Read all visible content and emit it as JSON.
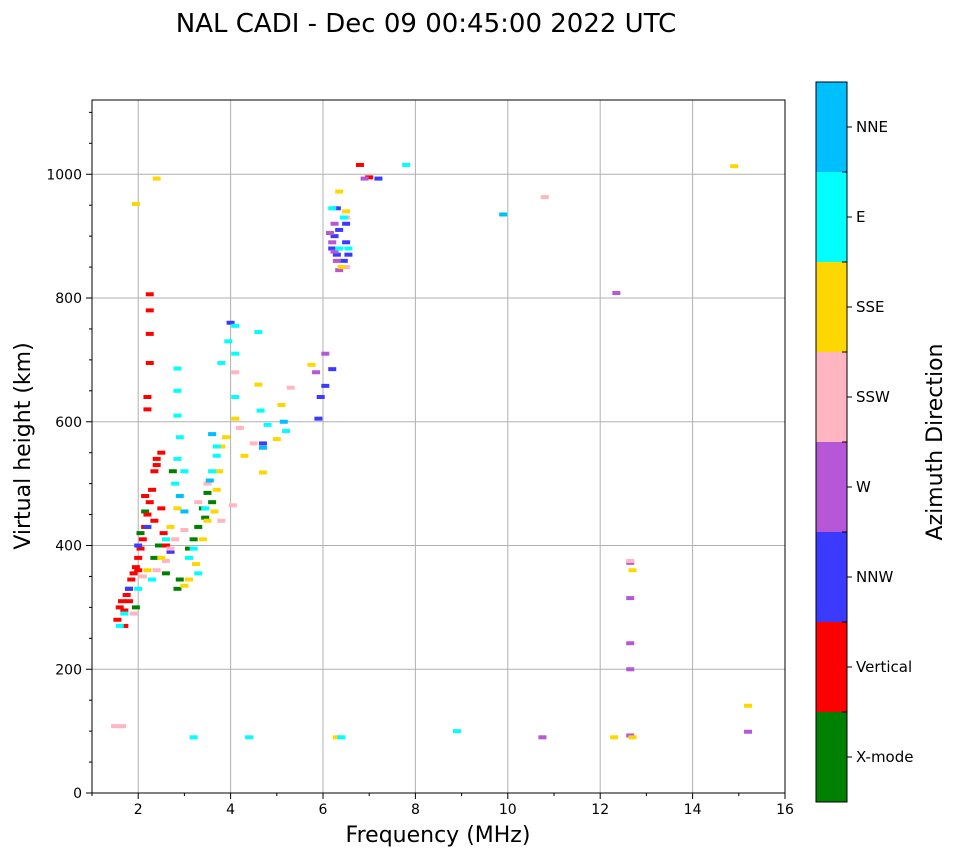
{
  "chart_data": {
    "type": "scatter",
    "title": "NAL CADI - Dec 09 00:45:00 2022 UTC",
    "xlabel": "Frequency (MHz)",
    "ylabel": "Virtual height (km)",
    "xlim": [
      1,
      16
    ],
    "ylim": [
      0,
      1120
    ],
    "xticks": [
      2,
      4,
      6,
      8,
      10,
      12,
      14,
      16
    ],
    "yticks": [
      0,
      200,
      400,
      600,
      800,
      1000
    ],
    "grid": true,
    "colorbar": {
      "label": "Azimuth Direction",
      "categories": [
        "X-mode",
        "Vertical",
        "NNW",
        "W",
        "SSW",
        "SSE",
        "E",
        "NNE"
      ],
      "colors": [
        "#008000",
        "#ff0000",
        "#3b3bff",
        "#b557d6",
        "#ffb6c1",
        "#ffd700",
        "#00ffff",
        "#00bfff"
      ]
    },
    "series": [
      {
        "name": "X-mode",
        "points": [
          [
            2.05,
            420
          ],
          [
            2.15,
            455
          ],
          [
            2.35,
            380
          ],
          [
            2.6,
            355
          ],
          [
            2.85,
            330
          ],
          [
            2.9,
            345
          ],
          [
            3.1,
            395
          ],
          [
            3.2,
            410
          ],
          [
            3.45,
            445
          ],
          [
            3.5,
            485
          ],
          [
            3.4,
            460
          ],
          [
            2.75,
            520
          ],
          [
            1.95,
            300
          ],
          [
            2.45,
            400
          ],
          [
            3.3,
            430
          ],
          [
            3.6,
            470
          ]
        ]
      },
      {
        "name": "Vertical",
        "points": [
          [
            1.55,
            280
          ],
          [
            1.6,
            300
          ],
          [
            1.65,
            310
          ],
          [
            1.7,
            295
          ],
          [
            1.75,
            320
          ],
          [
            1.8,
            330
          ],
          [
            1.85,
            345
          ],
          [
            1.9,
            355
          ],
          [
            1.95,
            365
          ],
          [
            2.0,
            380
          ],
          [
            2.05,
            395
          ],
          [
            2.1,
            410
          ],
          [
            2.15,
            430
          ],
          [
            2.2,
            450
          ],
          [
            2.25,
            470
          ],
          [
            2.3,
            490
          ],
          [
            2.35,
            520
          ],
          [
            2.4,
            540
          ],
          [
            2.5,
            460
          ],
          [
            2.55,
            420
          ],
          [
            2.6,
            400
          ],
          [
            2.7,
            390
          ],
          [
            2.2,
            620
          ],
          [
            2.25,
            695
          ],
          [
            2.25,
            742
          ],
          [
            2.25,
            780
          ],
          [
            2.25,
            806
          ],
          [
            2.2,
            640
          ],
          [
            2.4,
            530
          ],
          [
            2.5,
            550
          ],
          [
            1.7,
            270
          ],
          [
            1.8,
            310
          ],
          [
            2.0,
            360
          ],
          [
            2.15,
            480
          ],
          [
            2.35,
            440
          ],
          [
            6.8,
            1015
          ],
          [
            7.0,
            995
          ]
        ]
      },
      {
        "name": "NNW",
        "points": [
          [
            1.8,
            330
          ],
          [
            2.0,
            400
          ],
          [
            2.2,
            430
          ],
          [
            2.7,
            390
          ],
          [
            4.0,
            760
          ],
          [
            4.7,
            565
          ],
          [
            5.9,
            605
          ],
          [
            5.95,
            640
          ],
          [
            6.05,
            658
          ],
          [
            6.2,
            685
          ],
          [
            6.2,
            880
          ],
          [
            6.25,
            900
          ],
          [
            6.3,
            870
          ],
          [
            6.35,
            910
          ],
          [
            6.45,
            860
          ],
          [
            6.5,
            890
          ],
          [
            6.5,
            920
          ],
          [
            6.55,
            870
          ],
          [
            6.3,
            945
          ],
          [
            7.2,
            993
          ]
        ]
      },
      {
        "name": "W",
        "points": [
          [
            5.85,
            680
          ],
          [
            6.05,
            710
          ],
          [
            6.15,
            905
          ],
          [
            6.2,
            890
          ],
          [
            6.25,
            875
          ],
          [
            6.3,
            860
          ],
          [
            6.25,
            920
          ],
          [
            6.35,
            845
          ],
          [
            6.9,
            993
          ],
          [
            10.75,
            90
          ],
          [
            12.35,
            808
          ],
          [
            12.65,
            372
          ],
          [
            12.65,
            315
          ],
          [
            12.65,
            242
          ],
          [
            12.65,
            200
          ],
          [
            12.65,
            93
          ],
          [
            15.2,
            99
          ]
        ]
      },
      {
        "name": "SSW",
        "points": [
          [
            1.5,
            108
          ],
          [
            1.65,
            108
          ],
          [
            1.9,
            290
          ],
          [
            2.1,
            350
          ],
          [
            2.4,
            360
          ],
          [
            2.6,
            375
          ],
          [
            2.7,
            395
          ],
          [
            2.8,
            410
          ],
          [
            3.0,
            425
          ],
          [
            3.3,
            470
          ],
          [
            3.5,
            500
          ],
          [
            3.8,
            440
          ],
          [
            4.05,
            465
          ],
          [
            4.1,
            680
          ],
          [
            4.2,
            590
          ],
          [
            4.5,
            565
          ],
          [
            5.3,
            655
          ],
          [
            6.5,
            850
          ],
          [
            6.5,
            930
          ],
          [
            10.8,
            963
          ],
          [
            12.65,
            375
          ]
        ]
      },
      {
        "name": "SSE",
        "points": [
          [
            1.95,
            952
          ],
          [
            2.4,
            993
          ],
          [
            2.2,
            360
          ],
          [
            2.5,
            380
          ],
          [
            2.7,
            430
          ],
          [
            2.85,
            460
          ],
          [
            3.0,
            335
          ],
          [
            3.1,
            345
          ],
          [
            3.25,
            370
          ],
          [
            3.4,
            410
          ],
          [
            3.5,
            440
          ],
          [
            3.65,
            455
          ],
          [
            3.7,
            490
          ],
          [
            3.75,
            520
          ],
          [
            3.8,
            560
          ],
          [
            3.9,
            575
          ],
          [
            4.1,
            605
          ],
          [
            4.3,
            545
          ],
          [
            4.6,
            660
          ],
          [
            4.7,
            518
          ],
          [
            5.0,
            572
          ],
          [
            5.1,
            627
          ],
          [
            5.75,
            692
          ],
          [
            6.35,
            972
          ],
          [
            6.5,
            940
          ],
          [
            6.4,
            850
          ],
          [
            6.3,
            90
          ],
          [
            12.3,
            90
          ],
          [
            12.7,
            360
          ],
          [
            12.7,
            90
          ],
          [
            14.9,
            1013
          ],
          [
            15.2,
            141
          ]
        ]
      },
      {
        "name": "E",
        "points": [
          [
            1.6,
            270
          ],
          [
            1.7,
            290
          ],
          [
            2.0,
            330
          ],
          [
            2.3,
            345
          ],
          [
            2.6,
            410
          ],
          [
            2.8,
            500
          ],
          [
            2.85,
            540
          ],
          [
            2.9,
            575
          ],
          [
            2.85,
            610
          ],
          [
            2.85,
            650
          ],
          [
            2.85,
            686
          ],
          [
            3.0,
            520
          ],
          [
            3.1,
            380
          ],
          [
            3.2,
            395
          ],
          [
            3.3,
            355
          ],
          [
            3.45,
            460
          ],
          [
            3.6,
            520
          ],
          [
            3.7,
            545
          ],
          [
            3.7,
            560
          ],
          [
            3.8,
            695
          ],
          [
            3.95,
            730
          ],
          [
            4.1,
            710
          ],
          [
            4.1,
            755
          ],
          [
            4.1,
            640
          ],
          [
            4.6,
            745
          ],
          [
            4.65,
            618
          ],
          [
            4.8,
            595
          ],
          [
            5.2,
            585
          ],
          [
            6.2,
            945
          ],
          [
            6.45,
            930
          ],
          [
            6.35,
            880
          ],
          [
            6.55,
            880
          ],
          [
            6.4,
            90
          ],
          [
            3.2,
            90
          ],
          [
            4.4,
            90
          ],
          [
            7.8,
            1015
          ],
          [
            8.9,
            100
          ]
        ]
      },
      {
        "name": "NNE",
        "points": [
          [
            2.9,
            480
          ],
          [
            3.0,
            455
          ],
          [
            3.55,
            505
          ],
          [
            3.6,
            580
          ],
          [
            4.7,
            558
          ],
          [
            5.15,
            600
          ],
          [
            9.9,
            935
          ]
        ]
      }
    ]
  }
}
